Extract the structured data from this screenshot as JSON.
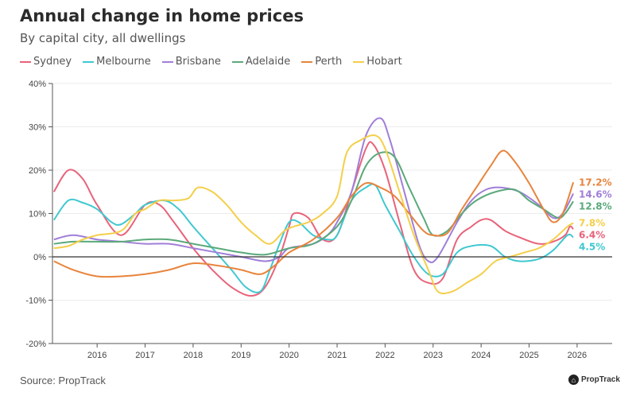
{
  "chart_data": {
    "type": "line",
    "title": "Annual change in home prices",
    "subtitle": "By capital city, all dwellings",
    "source": "Source: PropTrack",
    "logo_text": "PropTrack",
    "xlim": [
      2015.07,
      2026.73
    ],
    "ylim": [
      -20,
      40
    ],
    "y_ticks": [
      "-20%",
      "-10%",
      "0%",
      "10%",
      "20%",
      "30%",
      "40%"
    ],
    "y_tick_values": [
      -20,
      -10,
      0,
      10,
      20,
      30,
      40
    ],
    "x_ticks": [
      "2016",
      "2017",
      "2018",
      "2019",
      "2020",
      "2021",
      "2022",
      "2023",
      "2024",
      "2025",
      "2026"
    ],
    "grid": "horizontal",
    "legend": "top",
    "series": [
      {
        "name": "Sydney",
        "color": "#e8637a",
        "end_label": "6.4%",
        "x": [
          2015.1,
          2015.4,
          2015.7,
          2016.0,
          2016.5,
          2017.0,
          2017.3,
          2017.6,
          2018.0,
          2018.4,
          2018.8,
          2019.2,
          2019.5,
          2019.8,
          2020.0,
          2020.1,
          2020.4,
          2020.7,
          2021.0,
          2021.3,
          2021.6,
          2021.75,
          2022.0,
          2022.3,
          2022.6,
          2022.9,
          2023.2,
          2023.5,
          2023.8,
          2024.0,
          2024.2,
          2024.5,
          2024.8,
          2025.2,
          2025.5,
          2025.75,
          2025.85,
          2025.92
        ],
        "y": [
          15,
          20,
          18,
          12,
          5,
          12,
          12,
          8,
          2,
          -3,
          -7,
          -9,
          -7,
          0,
          7,
          10,
          9,
          4,
          5,
          15,
          25,
          26,
          20,
          8,
          -3,
          -6,
          -5,
          4,
          7,
          8.5,
          8.5,
          6,
          4.5,
          3,
          3.5,
          5,
          7,
          6.4
        ]
      },
      {
        "name": "Melbourne",
        "color": "#40c8d0",
        "end_label": "4.5%",
        "x": [
          2015.1,
          2015.4,
          2015.7,
          2016.0,
          2016.3,
          2016.5,
          2016.8,
          2017.0,
          2017.4,
          2017.7,
          2018.0,
          2018.4,
          2018.8,
          2019.1,
          2019.4,
          2019.6,
          2019.8,
          2020.0,
          2020.2,
          2020.5,
          2020.8,
          2021.0,
          2021.3,
          2021.6,
          2021.8,
          2022.0,
          2022.3,
          2022.6,
          2022.9,
          2023.2,
          2023.5,
          2023.8,
          2024.2,
          2024.5,
          2024.8,
          2025.2,
          2025.5,
          2025.8,
          2025.92
        ],
        "y": [
          8.5,
          13,
          12.5,
          11,
          8,
          7.5,
          10,
          12,
          13,
          11,
          7,
          2,
          -3,
          -7,
          -8,
          -3,
          3,
          8,
          8,
          5,
          4,
          5,
          13,
          16,
          16.5,
          12,
          6,
          0,
          -4,
          -4,
          1,
          2.5,
          2.5,
          0,
          -1,
          -0.5,
          1.5,
          5,
          4.5
        ]
      },
      {
        "name": "Brisbane",
        "color": "#a07ed8",
        "end_label": "14.6%",
        "x": [
          2015.1,
          2015.5,
          2016.0,
          2016.5,
          2017.0,
          2017.5,
          2018.0,
          2018.5,
          2019.0,
          2019.5,
          2019.8,
          2020.0,
          2020.5,
          2020.8,
          2021.0,
          2021.3,
          2021.6,
          2021.9,
          2022.1,
          2022.4,
          2022.7,
          2022.9,
          2023.1,
          2023.5,
          2023.8,
          2024.1,
          2024.4,
          2024.8,
          2025.2,
          2025.5,
          2025.7,
          2025.92
        ],
        "y": [
          4,
          5,
          4,
          3.5,
          3,
          3,
          2,
          1,
          0,
          -1,
          0,
          2,
          3,
          5,
          8,
          15,
          28,
          32,
          27,
          15,
          3,
          -1,
          0,
          8,
          13,
          15.5,
          16,
          15,
          12,
          9,
          10,
          14.6
        ]
      },
      {
        "name": "Adelaide",
        "color": "#5aa97a",
        "end_label": "12.8%",
        "x": [
          2015.1,
          2015.5,
          2016.0,
          2016.5,
          2017.0,
          2017.5,
          2018.0,
          2018.5,
          2019.0,
          2019.5,
          2020.0,
          2020.5,
          2021.0,
          2021.3,
          2021.6,
          2021.9,
          2022.2,
          2022.5,
          2022.8,
          2023.0,
          2023.3,
          2023.6,
          2023.9,
          2024.3,
          2024.7,
          2025.0,
          2025.3,
          2025.6,
          2025.75,
          2025.92
        ],
        "y": [
          3,
          3.5,
          3.5,
          3.5,
          4,
          4,
          3,
          2,
          1,
          0.5,
          2,
          3,
          7,
          13,
          21,
          24,
          23,
          16,
          9,
          5,
          6,
          10,
          13,
          15,
          15.5,
          13,
          11,
          9,
          10,
          12.8
        ]
      },
      {
        "name": "Perth",
        "color": "#e8843c",
        "end_label": "17.2%",
        "x": [
          2015.1,
          2015.5,
          2016.0,
          2016.5,
          2017.0,
          2017.5,
          2018.0,
          2018.5,
          2019.0,
          2019.4,
          2019.7,
          2020.0,
          2020.5,
          2021.0,
          2021.3,
          2021.6,
          2021.9,
          2022.2,
          2022.5,
          2022.8,
          2023.0,
          2023.3,
          2023.6,
          2023.9,
          2024.2,
          2024.45,
          2024.7,
          2025.0,
          2025.3,
          2025.5,
          2025.7,
          2025.92
        ],
        "y": [
          -1,
          -3,
          -4.5,
          -4.5,
          -4,
          -3,
          -1.5,
          -2,
          -3,
          -4,
          -2,
          1,
          4,
          9,
          14,
          17,
          16,
          14,
          10,
          6,
          5,
          5.5,
          11,
          16,
          21,
          24.5,
          22,
          17,
          11,
          8,
          10,
          17.2
        ]
      },
      {
        "name": "Hobart",
        "color": "#f4cf4a",
        "end_label": "7.8%",
        "x": [
          2015.1,
          2015.4,
          2015.7,
          2016.0,
          2016.5,
          2016.8,
          2017.0,
          2017.3,
          2017.6,
          2017.9,
          2018.1,
          2018.4,
          2018.7,
          2019.0,
          2019.3,
          2019.6,
          2019.9,
          2020.1,
          2020.4,
          2020.7,
          2021.0,
          2021.2,
          2021.5,
          2021.8,
          2022.0,
          2022.3,
          2022.6,
          2022.9,
          2023.1,
          2023.4,
          2023.7,
          2024.0,
          2024.3,
          2024.6,
          2024.9,
          2025.2,
          2025.5,
          2025.8,
          2025.92
        ],
        "y": [
          2,
          2.5,
          4,
          5,
          6,
          10,
          11,
          13,
          13,
          13.5,
          16,
          15,
          12,
          8,
          5,
          3,
          6,
          7,
          8,
          10,
          14,
          24,
          27,
          28,
          25,
          15,
          5,
          -3,
          -8,
          -8,
          -6,
          -4,
          -1,
          0,
          1,
          2,
          4,
          7,
          7.8
        ]
      }
    ]
  }
}
